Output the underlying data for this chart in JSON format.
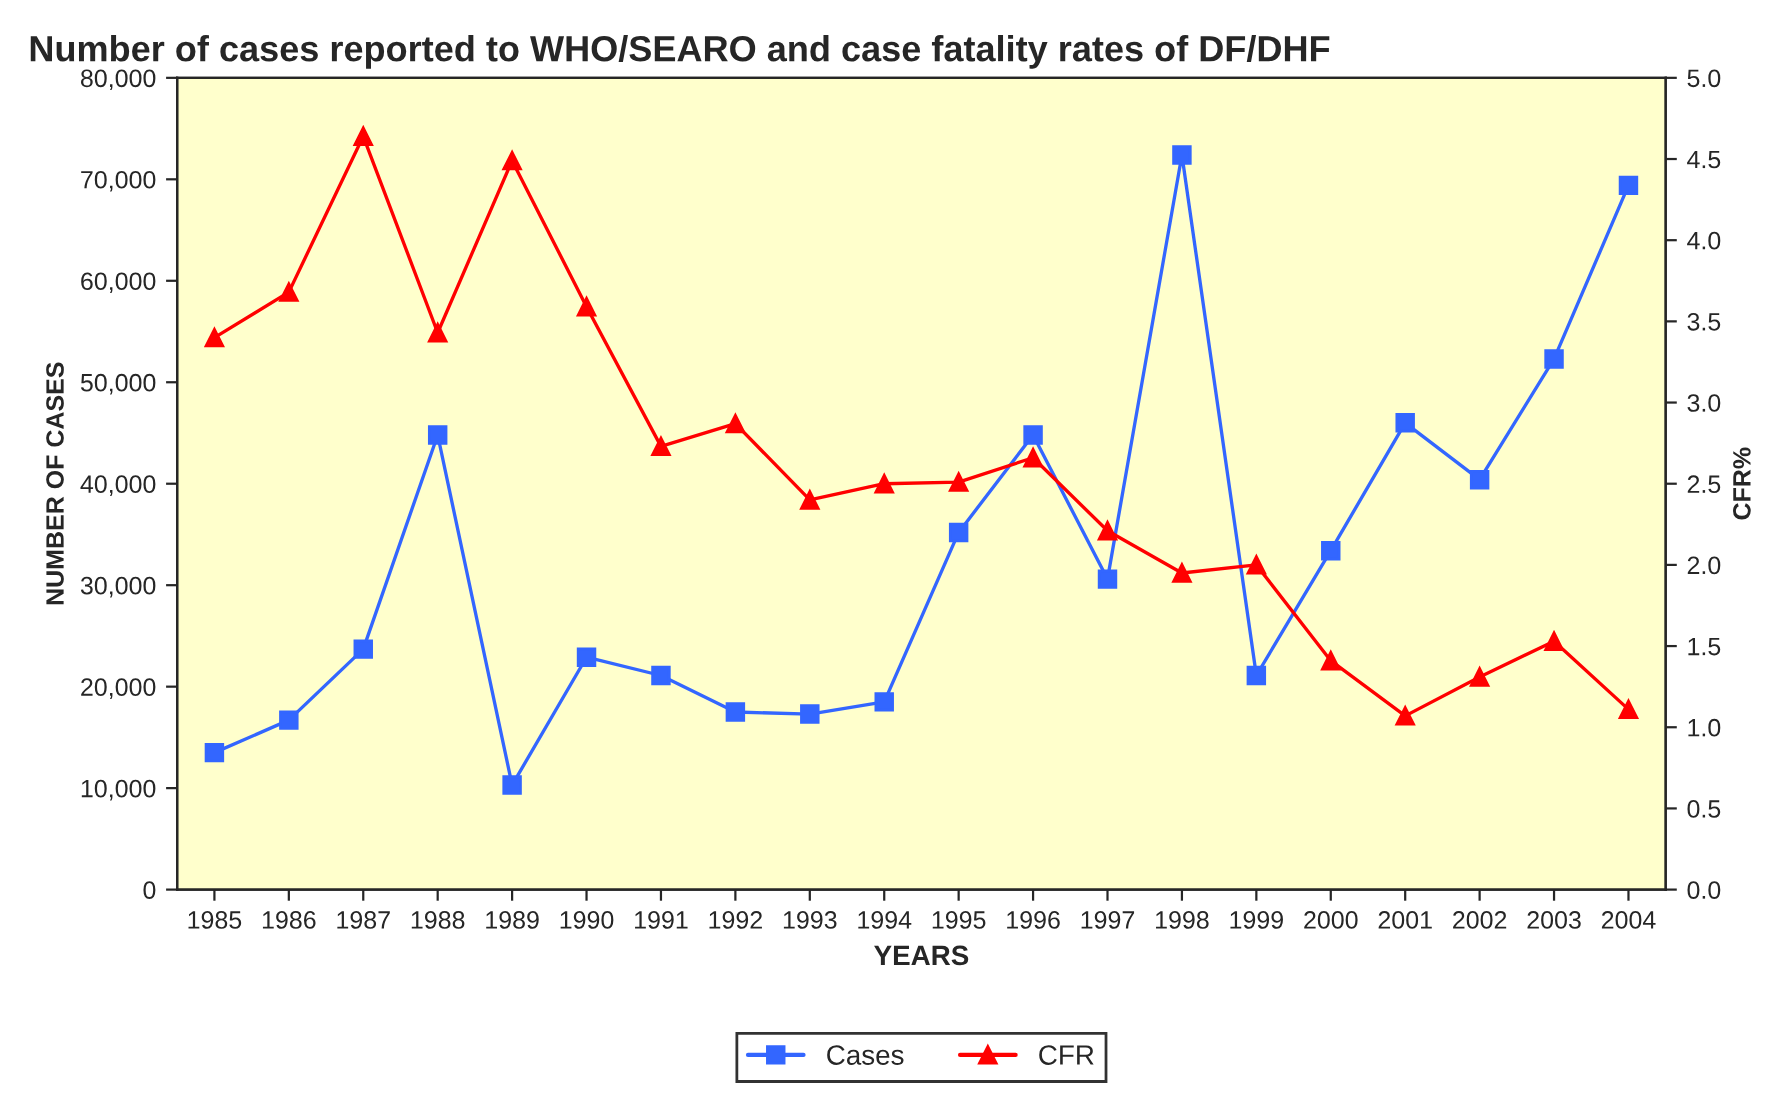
{
  "chart_data": {
    "type": "line",
    "title": "Number of cases reported to WHO/SEARO and case fatality rates of DF/DHF",
    "xlabel": "YEARS",
    "ylabel": "NUMBER OF CASES",
    "y2label": "CFR%",
    "categories": [
      "1985",
      "1986",
      "1987",
      "1988",
      "1989",
      "1990",
      "1991",
      "1992",
      "1993",
      "1994",
      "1995",
      "1996",
      "1997",
      "1998",
      "1999",
      "2000",
      "2001",
      "2002",
      "2003",
      "2004"
    ],
    "series": [
      {
        "name": "Cases",
        "color": "#3366ff",
        "marker": "square",
        "values": [
          13500,
          16700,
          23700,
          44800,
          10300,
          22900,
          21100,
          17500,
          17300,
          18500,
          35200,
          44800,
          30600,
          72400,
          21100,
          33400,
          46000,
          40400,
          52300,
          69400
        ]
      },
      {
        "name": "CFR",
        "color": "#ff0000",
        "marker": "triangle",
        "axis": "y2",
        "values": [
          3.4,
          3.68,
          4.64,
          3.43,
          4.49,
          3.59,
          2.73,
          2.87,
          2.4,
          2.5,
          2.51,
          2.66,
          2.21,
          1.95,
          2.0,
          1.41,
          1.07,
          1.31,
          1.53,
          1.11
        ]
      }
    ],
    "ylim": [
      0,
      80000
    ],
    "yticks": [
      {
        "value": 0,
        "label": "0"
      },
      {
        "value": 10000,
        "label": "10,000"
      },
      {
        "value": 20000,
        "label": "20,000"
      },
      {
        "value": 30000,
        "label": "30,000"
      },
      {
        "value": 40000,
        "label": "40,000"
      },
      {
        "value": 50000,
        "label": "50,000"
      },
      {
        "value": 60000,
        "label": "60,000"
      },
      {
        "value": 70000,
        "label": "70,000"
      },
      {
        "value": 80000,
        "label": "80,000"
      }
    ],
    "y2lim": [
      0,
      5
    ],
    "y2ticks": [
      {
        "value": 0,
        "label": "0.0"
      },
      {
        "value": 0.5,
        "label": "0.5"
      },
      {
        "value": 1,
        "label": "1.0"
      },
      {
        "value": 1.5,
        "label": "1.5"
      },
      {
        "value": 2,
        "label": "2.0"
      },
      {
        "value": 2.5,
        "label": "2.5"
      },
      {
        "value": 3,
        "label": "3.0"
      },
      {
        "value": 3.5,
        "label": "3.5"
      },
      {
        "value": 4,
        "label": "4.0"
      },
      {
        "value": 4.5,
        "label": "4.5"
      },
      {
        "value": 5,
        "label": "5.0"
      }
    ],
    "grid": false,
    "legend": "bottom",
    "line_style": "solid"
  }
}
